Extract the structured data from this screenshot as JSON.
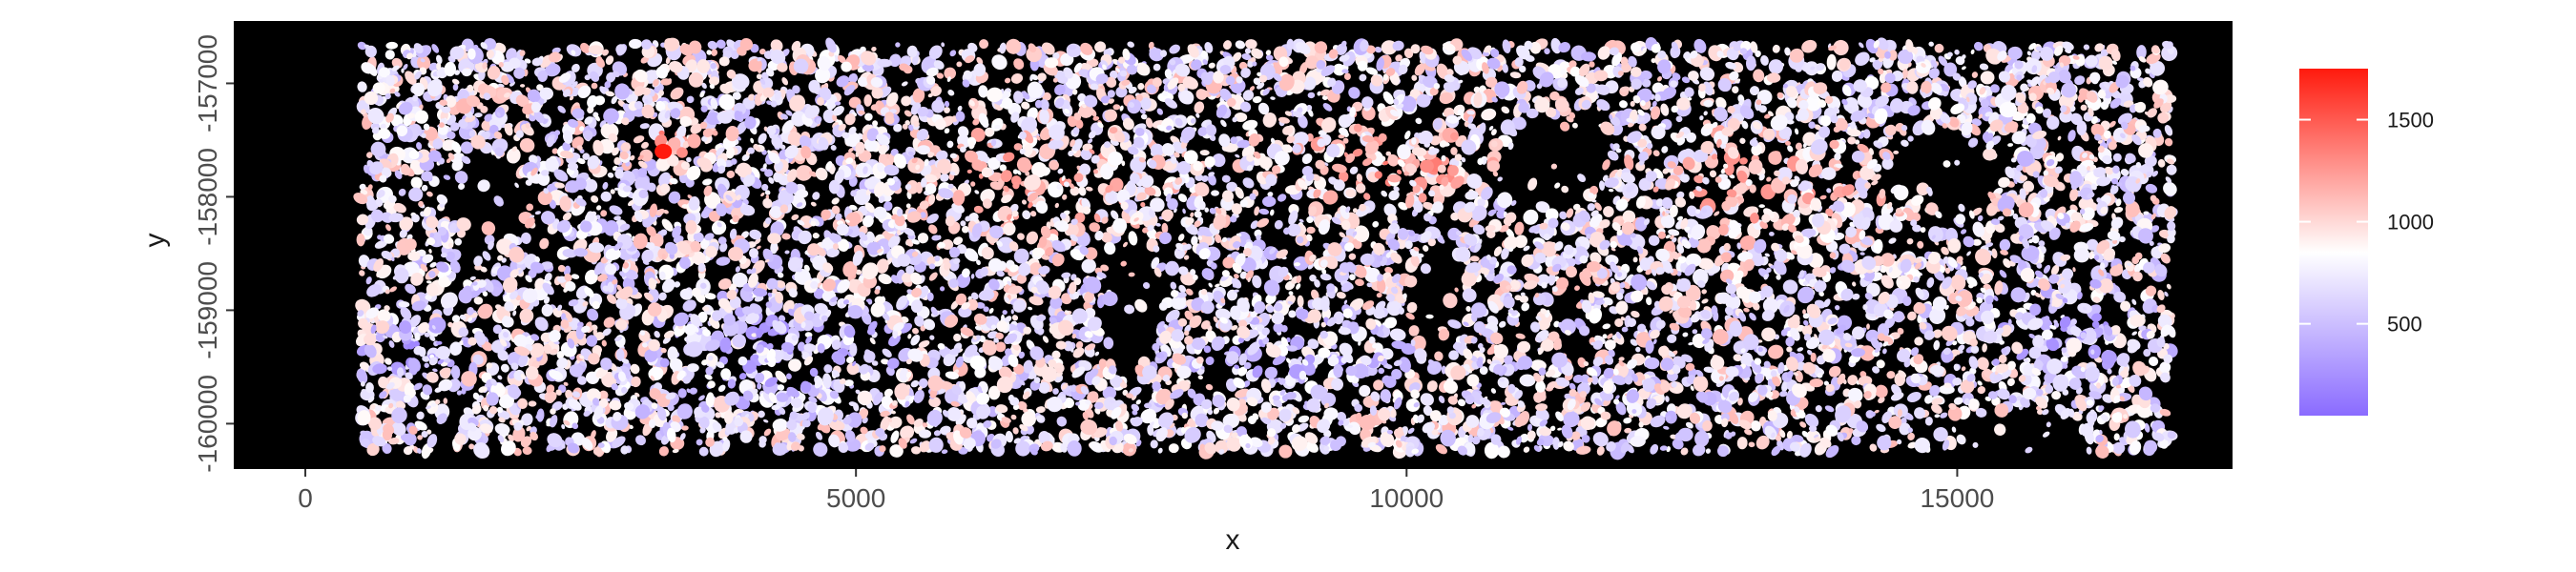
{
  "chart_data": {
    "type": "scatter",
    "title": "",
    "xlabel": "x",
    "ylabel": "y",
    "xlim": [
      -650,
      17500
    ],
    "ylim": [
      -160400,
      -156450
    ],
    "x_ticks": [
      0,
      5000,
      10000,
      15000
    ],
    "x_tick_labels": [
      "0",
      "5000",
      "10000",
      "15000"
    ],
    "y_ticks": [
      -160000,
      -159000,
      -158000,
      -157000
    ],
    "y_tick_labels": [
      "-160000",
      "-159000",
      "-158000",
      "-157000"
    ],
    "data_extent": {
      "x": [
        500,
        16950
      ],
      "y": [
        -160250,
        -156650
      ]
    },
    "panel_background": "#000000",
    "grid": false,
    "legend": {
      "position": "right",
      "title": "",
      "ticks": [
        500,
        1000,
        1500
      ],
      "tick_labels": [
        "500",
        "1000",
        "1500"
      ],
      "range": [
        50,
        1750
      ]
    },
    "color_scale": {
      "low": "#8a6bff",
      "mid": "#ffffff",
      "high": "#ff1a0d",
      "midpoint": 850
    },
    "point_count": 9000,
    "point_shape": "segmented cell polygons"
  }
}
